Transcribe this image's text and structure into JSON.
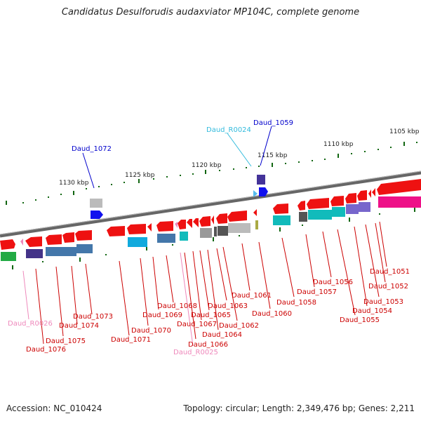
{
  "title": "Candidatus Desulforudis audaxviator MP104C, complete genome",
  "accession": "Accession: NC_010424",
  "topology": "Topology: circular; Length: 2,349,476 bp; Genes: 2,211",
  "scale_labels": [
    "1130 kbp",
    "1125 kbp",
    "1120 kbp",
    "1115 kbp",
    "1110 kbp",
    "1105 kbp"
  ],
  "colors": {
    "gene_red": "#ee1111",
    "label_red": "#cc0000",
    "rrna_pink": "#ee88bb",
    "blue_label": "#0000cc",
    "cyan_label": "#33bbdd",
    "backbone": "#777777",
    "scale_tick": "#116611"
  },
  "upper_labels": [
    {
      "text": "Daud_R0024",
      "color": "#33bbdd"
    },
    {
      "text": "Daud_1059",
      "color": "#0000cc"
    },
    {
      "text": "Daud_1072",
      "color": "#0000cc"
    }
  ],
  "lower_labels": [
    {
      "text": "Daud_R0026",
      "color": "#ee88bb"
    },
    {
      "text": "Daud_1076",
      "color": "#cc0000"
    },
    {
      "text": "Daud_1075",
      "color": "#cc0000"
    },
    {
      "text": "Daud_1074",
      "color": "#cc0000"
    },
    {
      "text": "Daud_1073",
      "color": "#cc0000"
    },
    {
      "text": "Daud_1071",
      "color": "#cc0000"
    },
    {
      "text": "Daud_1070",
      "color": "#cc0000"
    },
    {
      "text": "Daud_1069",
      "color": "#cc0000"
    },
    {
      "text": "Daud_1068",
      "color": "#cc0000"
    },
    {
      "text": "Daud_R0025",
      "color": "#ee88bb"
    },
    {
      "text": "Daud_1066",
      "color": "#cc0000"
    },
    {
      "text": "Daud_1067",
      "color": "#cc0000"
    },
    {
      "text": "Daud_1065",
      "color": "#cc0000"
    },
    {
      "text": "Daud_1064",
      "color": "#cc0000"
    },
    {
      "text": "Daud_1063",
      "color": "#cc0000"
    },
    {
      "text": "Daud_1062",
      "color": "#cc0000"
    },
    {
      "text": "Daud_1061",
      "color": "#cc0000"
    },
    {
      "text": "Daud_1060",
      "color": "#cc0000"
    },
    {
      "text": "Daud_1058",
      "color": "#cc0000"
    },
    {
      "text": "Daud_1057",
      "color": "#cc0000"
    },
    {
      "text": "Daud_1056",
      "color": "#cc0000"
    },
    {
      "text": "Daud_1055",
      "color": "#cc0000"
    },
    {
      "text": "Daud_1054",
      "color": "#cc0000"
    },
    {
      "text": "Daud_1053",
      "color": "#cc0000"
    },
    {
      "text": "Daud_1052",
      "color": "#cc0000"
    },
    {
      "text": "Daud_1051",
      "color": "#cc0000"
    }
  ]
}
